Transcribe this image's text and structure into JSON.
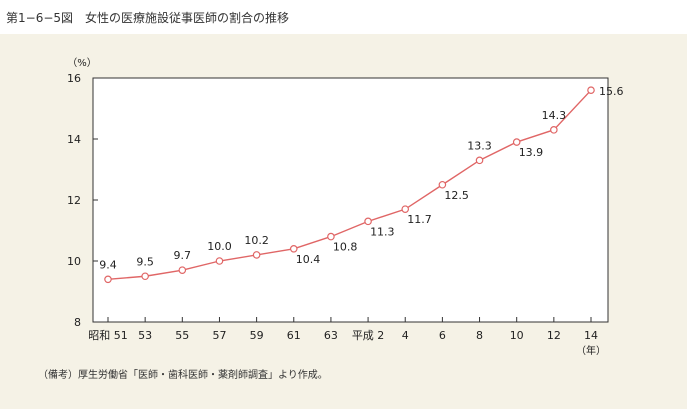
{
  "header": {
    "title": "第1−6−5図　女性の医療施設従事医師の割合の推移"
  },
  "note": "（備考）厚生労働省「医師・歯科医師・薬剤師調査」より作成。",
  "chart_data": {
    "type": "line",
    "title": "第1−6−5図　女性の医療施設従事医師の割合の推移",
    "ylabel": "（%）",
    "xlabel": "（年）",
    "ylim": [
      8,
      16
    ],
    "yticks": [
      8,
      10,
      12,
      14,
      16
    ],
    "categories": [
      "昭和 51",
      "53",
      "55",
      "57",
      "59",
      "61",
      "63",
      "平成 2",
      "4",
      "6",
      "8",
      "10",
      "12",
      "14"
    ],
    "series": [
      {
        "values": [
          9.4,
          9.5,
          9.7,
          10.0,
          10.2,
          10.4,
          10.8,
          11.3,
          11.7,
          12.5,
          13.3,
          13.9,
          14.3,
          15.6
        ],
        "color": "#e06666"
      }
    ],
    "data_labels": [
      "9.4",
      "9.5",
      "9.7",
      "10.0",
      "10.2",
      "10.4",
      "10.8",
      "11.3",
      "11.7",
      "12.5",
      "13.3",
      "13.9",
      "14.3",
      "15.6"
    ],
    "grid": false
  }
}
